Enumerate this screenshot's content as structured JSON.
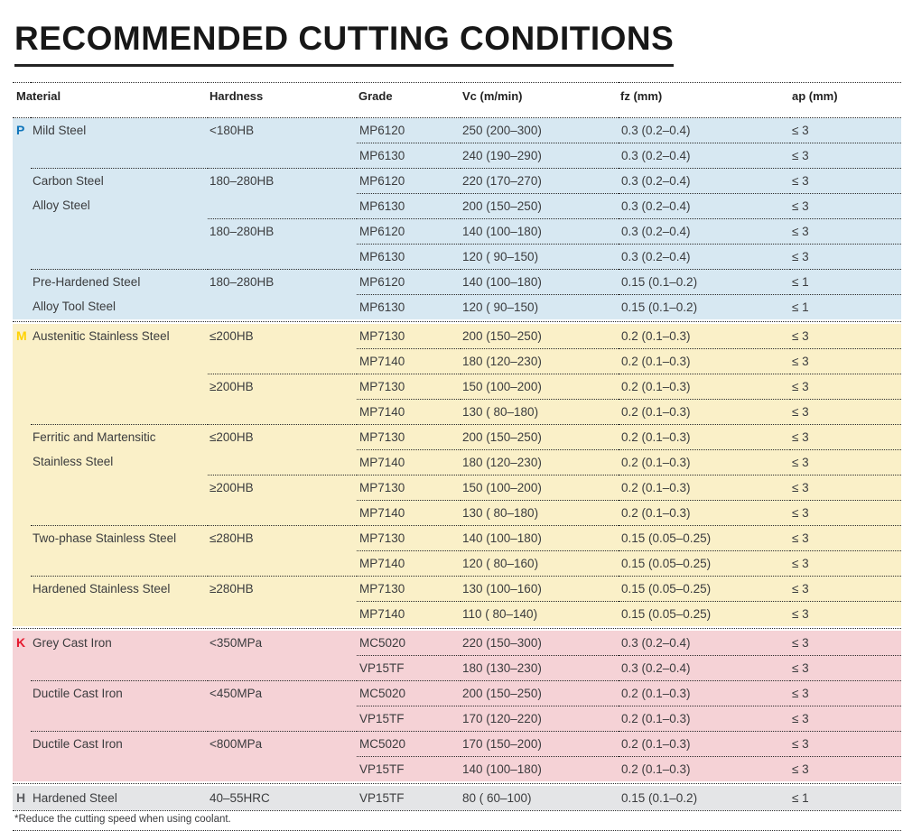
{
  "page": {
    "title": "RECOMMENDED CUTTING CONDITIONS",
    "footnote": "*Reduce the cutting speed when using coolant."
  },
  "table": {
    "columns": [
      "Material",
      "Hardness",
      "Grade",
      "Vc (m/min)",
      "fz (mm)",
      "ap (mm)"
    ],
    "colors": {
      "text": "#3b3c3e",
      "dotted_line": "#2b2b2b"
    },
    "sections": [
      {
        "id": "P",
        "marker": "P",
        "marker_color": "#0e74ba",
        "bg": "#d7e8f2",
        "groups": [
          {
            "material": [
              "Mild Steel"
            ],
            "hardness_groups": [
              {
                "hardness": "<180HB",
                "rows": [
                  {
                    "grade": "MP6120",
                    "vc": "250 (200–300)",
                    "fz": "0.3 (0.2–0.4)",
                    "ap": "≤ 3"
                  },
                  {
                    "grade": "MP6130",
                    "vc": "240 (190–290)",
                    "fz": "0.3 (0.2–0.4)",
                    "ap": "≤ 3"
                  }
                ]
              }
            ]
          },
          {
            "material": [
              "Carbon Steel",
              "Alloy Steel"
            ],
            "hardness_groups": [
              {
                "hardness": "180–280HB",
                "rows": [
                  {
                    "grade": "MP6120",
                    "vc": "220 (170–270)",
                    "fz": "0.3 (0.2–0.4)",
                    "ap": "≤ 3"
                  },
                  {
                    "grade": "MP6130",
                    "vc": "200 (150–250)",
                    "fz": "0.3 (0.2–0.4)",
                    "ap": "≤ 3"
                  }
                ]
              },
              {
                "hardness": "180–280HB",
                "rows": [
                  {
                    "grade": "MP6120",
                    "vc": "140 (100–180)",
                    "fz": "0.3 (0.2–0.4)",
                    "ap": "≤ 3"
                  },
                  {
                    "grade": "MP6130",
                    "vc": "120 ( 90–150)",
                    "fz": "0.3 (0.2–0.4)",
                    "ap": "≤ 3"
                  }
                ]
              }
            ]
          },
          {
            "material": [
              "Pre-Hardened Steel",
              "Alloy Tool Steel"
            ],
            "hardness_groups": [
              {
                "hardness": "180–280HB",
                "rows": [
                  {
                    "grade": "MP6120",
                    "vc": "140 (100–180)",
                    "fz": "0.15 (0.1–0.2)",
                    "ap": "≤ 1"
                  },
                  {
                    "grade": "MP6130",
                    "vc": "120 ( 90–150)",
                    "fz": "0.15 (0.1–0.2)",
                    "ap": "≤ 1"
                  }
                ]
              }
            ]
          }
        ]
      },
      {
        "id": "M",
        "marker": "M",
        "marker_color": "#ffd200",
        "bg": "#faf0c8",
        "groups": [
          {
            "material": [
              "Austenitic Stainless Steel"
            ],
            "hardness_groups": [
              {
                "hardness": "≤200HB",
                "rows": [
                  {
                    "grade": "MP7130",
                    "vc": "200 (150–250)",
                    "fz": "0.2 (0.1–0.3)",
                    "ap": "≤ 3"
                  },
                  {
                    "grade": "MP7140",
                    "vc": "180 (120–230)",
                    "fz": "0.2 (0.1–0.3)",
                    "ap": "≤ 3"
                  }
                ]
              },
              {
                "hardness": "≥200HB",
                "rows": [
                  {
                    "grade": "MP7130",
                    "vc": "150 (100–200)",
                    "fz": "0.2 (0.1–0.3)",
                    "ap": "≤ 3"
                  },
                  {
                    "grade": "MP7140",
                    "vc": "130 ( 80–180)",
                    "fz": "0.2 (0.1–0.3)",
                    "ap": "≤ 3"
                  }
                ]
              }
            ]
          },
          {
            "material": [
              "Ferritic and Martensitic",
              "Stainless Steel"
            ],
            "hardness_groups": [
              {
                "hardness": "≤200HB",
                "rows": [
                  {
                    "grade": "MP7130",
                    "vc": "200 (150–250)",
                    "fz": "0.2 (0.1–0.3)",
                    "ap": "≤ 3"
                  },
                  {
                    "grade": "MP7140",
                    "vc": "180 (120–230)",
                    "fz": "0.2 (0.1–0.3)",
                    "ap": "≤ 3"
                  }
                ]
              },
              {
                "hardness": "≥200HB",
                "rows": [
                  {
                    "grade": "MP7130",
                    "vc": "150 (100–200)",
                    "fz": "0.2 (0.1–0.3)",
                    "ap": "≤ 3"
                  },
                  {
                    "grade": "MP7140",
                    "vc": "130 ( 80–180)",
                    "fz": "0.2 (0.1–0.3)",
                    "ap": "≤ 3"
                  }
                ]
              }
            ]
          },
          {
            "material": [
              "Two-phase Stainless Steel"
            ],
            "hardness_groups": [
              {
                "hardness": "≤280HB",
                "rows": [
                  {
                    "grade": "MP7130",
                    "vc": "140 (100–180)",
                    "fz": "0.15 (0.05–0.25)",
                    "ap": "≤ 3"
                  },
                  {
                    "grade": "MP7140",
                    "vc": "120 ( 80–160)",
                    "fz": "0.15 (0.05–0.25)",
                    "ap": "≤ 3"
                  }
                ]
              }
            ]
          },
          {
            "material": [
              "Hardened Stainless Steel"
            ],
            "hardness_groups": [
              {
                "hardness": "≥280HB",
                "rows": [
                  {
                    "grade": "MP7130",
                    "vc": "130 (100–160)",
                    "fz": "0.15 (0.05–0.25)",
                    "ap": "≤ 3"
                  },
                  {
                    "grade": "MP7140",
                    "vc": "110 ( 80–140)",
                    "fz": "0.15 (0.05–0.25)",
                    "ap": "≤ 3"
                  }
                ]
              }
            ]
          }
        ]
      },
      {
        "id": "K",
        "marker": "K",
        "marker_color": "#e6192e",
        "bg": "#f5d2d6",
        "groups": [
          {
            "material": [
              "Grey Cast Iron"
            ],
            "hardness_groups": [
              {
                "hardness": "<350MPa",
                "rows": [
                  {
                    "grade": "MC5020",
                    "vc": "220 (150–300)",
                    "fz": "0.3 (0.2–0.4)",
                    "ap": "≤ 3"
                  },
                  {
                    "grade": "VP15TF",
                    "vc": "180 (130–230)",
                    "fz": "0.3 (0.2–0.4)",
                    "ap": "≤ 3"
                  }
                ]
              }
            ]
          },
          {
            "material": [
              "Ductile Cast Iron"
            ],
            "hardness_groups": [
              {
                "hardness": "<450MPa",
                "rows": [
                  {
                    "grade": "MC5020",
                    "vc": "200 (150–250)",
                    "fz": "0.2 (0.1–0.3)",
                    "ap": "≤ 3"
                  },
                  {
                    "grade": "VP15TF",
                    "vc": "170 (120–220)",
                    "fz": "0.2 (0.1–0.3)",
                    "ap": "≤ 3"
                  }
                ]
              }
            ]
          },
          {
            "material": [
              "Ductile Cast Iron"
            ],
            "hardness_groups": [
              {
                "hardness": "<800MPa",
                "rows": [
                  {
                    "grade": "MC5020",
                    "vc": "170 (150–200)",
                    "fz": "0.2 (0.1–0.3)",
                    "ap": "≤ 3"
                  },
                  {
                    "grade": "VP15TF",
                    "vc": "140 (100–180)",
                    "fz": "0.2 (0.1–0.3)",
                    "ap": "≤ 3"
                  }
                ]
              }
            ]
          }
        ]
      },
      {
        "id": "H",
        "marker": "H",
        "marker_color": "#595a5e",
        "bg": "#e4e5e7",
        "groups": [
          {
            "material": [
              "Hardened Steel"
            ],
            "hardness_groups": [
              {
                "hardness": "40–55HRC",
                "rows": [
                  {
                    "grade": "VP15TF",
                    "vc": "80 ( 60–100)",
                    "fz": "0.15 (0.1–0.2)",
                    "ap": "≤ 1"
                  }
                ]
              }
            ]
          }
        ]
      }
    ]
  }
}
